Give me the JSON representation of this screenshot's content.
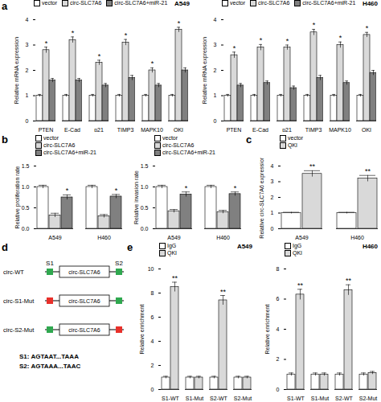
{
  "chart_data": [
    {
      "type": "bar",
      "panel": "a",
      "title": "A549",
      "y_label": "Relative mRNA expression",
      "categories": [
        "PTEN",
        "E-Cad",
        "p21",
        "TIMP3",
        "MAPK10",
        "QKI"
      ],
      "series": [
        {
          "name": "vector",
          "color": "#ffffff",
          "values": [
            1,
            1,
            1,
            1,
            1,
            1
          ],
          "errors": [
            0.05,
            0.05,
            0.05,
            0.05,
            0.05,
            0.05
          ]
        },
        {
          "name": "circ-SLC7A6",
          "color": "#d9d9d9",
          "values": [
            2.8,
            3.2,
            2.3,
            3.1,
            2.0,
            3.6
          ],
          "errors": [
            0.12,
            0.12,
            0.1,
            0.12,
            0.1,
            0.1
          ]
        },
        {
          "name": "circ-SLC7A6+miR-21",
          "color": "#808080",
          "values": [
            1.6,
            1.6,
            1.4,
            1.7,
            1.4,
            2.0
          ],
          "errors": [
            0.08,
            0.08,
            0.08,
            0.1,
            0.08,
            0.1
          ]
        }
      ],
      "ylim": [
        0,
        4
      ],
      "yticks": [
        0,
        1,
        2,
        3,
        4
      ],
      "legend": "top-left",
      "annotations": [
        {
          "category": "PTEN",
          "series": "circ-SLC7A6",
          "text": "*"
        },
        {
          "category": "E-Cad",
          "series": "circ-SLC7A6",
          "text": "*"
        },
        {
          "category": "p21",
          "series": "circ-SLC7A6",
          "text": "*"
        },
        {
          "category": "TIMP3",
          "series": "circ-SLC7A6",
          "text": "*"
        },
        {
          "category": "MAPK10",
          "series": "circ-SLC7A6",
          "text": "*"
        },
        {
          "category": "QKI",
          "series": "circ-SLC7A6",
          "text": "*"
        }
      ]
    },
    {
      "type": "bar",
      "title": "H460",
      "y_label": "Relative mRNA expression",
      "categories": [
        "PTEN",
        "E-Cad",
        "p21",
        "TIMP3",
        "MAPK10",
        "QKI"
      ],
      "series": [
        {
          "name": "vector",
          "color": "#ffffff",
          "values": [
            1,
            1,
            1,
            1,
            1,
            1
          ],
          "errors": [
            0.05,
            0.05,
            0.05,
            0.05,
            0.05,
            0.05
          ]
        },
        {
          "name": "circ-SLC7A6",
          "color": "#d9d9d9",
          "values": [
            2.6,
            2.9,
            2.9,
            3.5,
            3.0,
            3.4
          ],
          "errors": [
            0.12,
            0.12,
            0.1,
            0.12,
            0.12,
            0.1
          ]
        },
        {
          "name": "circ-SLC7A6+miR-21",
          "color": "#808080",
          "values": [
            1.4,
            1.5,
            1.3,
            1.7,
            1.5,
            1.9
          ],
          "errors": [
            0.08,
            0.08,
            0.08,
            0.1,
            0.08,
            0.1
          ]
        }
      ],
      "ylim": [
        0,
        4
      ],
      "yticks": [
        0,
        1,
        2,
        3,
        4
      ],
      "legend": "top-left",
      "annotations": [
        {
          "category": "PTEN",
          "series": "circ-SLC7A6",
          "text": "*"
        },
        {
          "category": "E-Cad",
          "series": "circ-SLC7A6",
          "text": "*"
        },
        {
          "category": "p21",
          "series": "circ-SLC7A6",
          "text": "*"
        },
        {
          "category": "TIMP3",
          "series": "circ-SLC7A6",
          "text": "*"
        },
        {
          "category": "MAPK10",
          "series": "circ-SLC7A6",
          "text": "*"
        },
        {
          "category": "QKI",
          "series": "circ-SLC7A6",
          "text": "*"
        }
      ]
    },
    {
      "type": "bar",
      "panel": "b",
      "y_label": "Relative proliferation rate",
      "categories": [
        "A549",
        "H460"
      ],
      "series": [
        {
          "name": "vector",
          "color": "#ffffff",
          "values": [
            1,
            1
          ],
          "errors": [
            0.04,
            0.04
          ]
        },
        {
          "name": "circ-SLC7A6",
          "color": "#d9d9d9",
          "values": [
            0.32,
            0.3
          ],
          "errors": [
            0.05,
            0.04
          ]
        },
        {
          "name": "circ-SLC7A6+miR-21",
          "color": "#808080",
          "values": [
            0.75,
            0.77
          ],
          "errors": [
            0.06,
            0.05
          ]
        }
      ],
      "ylim": [
        0,
        1.5
      ],
      "yticks": [
        {
          "value": 0,
          "label": "0.0"
        },
        {
          "value": 0.5,
          "label": "0.5"
        },
        {
          "value": 1,
          "label": "1.0"
        },
        {
          "value": 1.5,
          "label": "1.5"
        }
      ],
      "legend": "top-left",
      "annotations": [
        {
          "category": "A549",
          "series": "circ-SLC7A6+miR-21",
          "text": "*"
        },
        {
          "category": "H460",
          "series": "circ-SLC7A6+miR-21",
          "text": "*"
        }
      ]
    },
    {
      "type": "bar",
      "y_label": "Relative invasion rate",
      "categories": [
        "A549",
        "H460"
      ],
      "series": [
        {
          "name": "vector",
          "color": "#ffffff",
          "values": [
            1,
            1
          ],
          "errors": [
            0.04,
            0.04
          ]
        },
        {
          "name": "circ-SLC7A6",
          "color": "#d9d9d9",
          "values": [
            0.42,
            0.4
          ],
          "errors": [
            0.04,
            0.04
          ]
        },
        {
          "name": "circ-SLC7A6+miR-21",
          "color": "#808080",
          "values": [
            0.82,
            0.83
          ],
          "errors": [
            0.06,
            0.05
          ]
        }
      ],
      "ylim": [
        0,
        1.5
      ],
      "yticks": [
        {
          "value": 0,
          "label": "0.0"
        },
        {
          "value": 0.5,
          "label": "0.5"
        },
        {
          "value": 1,
          "label": "1.0"
        },
        {
          "value": 1.5,
          "label": "1.5"
        }
      ],
      "legend": "top-left",
      "annotations": [
        {
          "category": "A549",
          "series": "circ-SLC7A6+miR-21",
          "text": "*"
        },
        {
          "category": "H460",
          "series": "circ-SLC7A6+miR-21",
          "text": "*"
        }
      ]
    },
    {
      "type": "bar",
      "panel": "c",
      "y_label": "Relative circ-SLC7A6 expression",
      "categories": [
        "A549",
        "H460"
      ],
      "series": [
        {
          "name": "vector",
          "color": "#ffffff",
          "values": [
            1,
            1
          ],
          "errors": [
            0.05,
            0.05
          ]
        },
        {
          "name": "QKI",
          "color": "#d9d9d9",
          "values": [
            3.5,
            3.2
          ],
          "errors": [
            0.2,
            0.2
          ]
        }
      ],
      "ylim": [
        0,
        4
      ],
      "yticks": [
        0,
        1,
        2,
        3,
        4
      ],
      "legend": "top-left",
      "annotations": [
        {
          "category": "A549",
          "series": "QKI",
          "text": "**"
        },
        {
          "category": "H460",
          "series": "QKI",
          "text": "**"
        }
      ]
    },
    {
      "type": "bar",
      "panel": "e",
      "title": "A549",
      "y_label": "Relative enrichment",
      "categories": [
        "S1-WT",
        "S1-Mut",
        "S2-WT",
        "S2-Mut"
      ],
      "series": [
        {
          "name": "IgG",
          "color": "#ffffff",
          "values": [
            1,
            1,
            1,
            1
          ],
          "errors": [
            0.1,
            0.1,
            0.1,
            0.1
          ]
        },
        {
          "name": "QKI",
          "color": "#d9d9d9",
          "values": [
            8.5,
            1.0,
            7.4,
            1.0
          ],
          "errors": [
            0.4,
            0.1,
            0.4,
            0.1
          ]
        }
      ],
      "ylim": [
        0,
        10
      ],
      "yticks": [
        0,
        2,
        4,
        6,
        8,
        10
      ],
      "legend": "top-left",
      "annotations": [
        {
          "category": "S1-WT",
          "series": "QKI",
          "text": "**"
        },
        {
          "category": "S2-WT",
          "series": "QKI",
          "text": "**"
        }
      ]
    },
    {
      "type": "bar",
      "title": "H460",
      "y_label": "Relative enrichment",
      "categories": [
        "S1-WT",
        "S1-Mut",
        "S2-WT",
        "S2-Mut"
      ],
      "series": [
        {
          "name": "IgG",
          "color": "#ffffff",
          "values": [
            1,
            1,
            1,
            1
          ],
          "errors": [
            0.1,
            0.1,
            0.1,
            0.1
          ]
        },
        {
          "name": "QKI",
          "color": "#d9d9d9",
          "values": [
            6.3,
            1.0,
            6.6,
            1.1
          ],
          "errors": [
            0.35,
            0.1,
            0.35,
            0.1
          ]
        }
      ],
      "ylim": [
        0,
        8
      ],
      "yticks": [
        0,
        2,
        4,
        6,
        8
      ],
      "legend": "top-left",
      "annotations": [
        {
          "category": "S1-WT",
          "series": "QKI",
          "text": "**"
        },
        {
          "category": "S2-WT",
          "series": "QKI",
          "text": "**"
        }
      ]
    }
  ],
  "diagram": {
    "panel": "d",
    "sites": [
      "S1",
      "S2"
    ],
    "constructs": [
      {
        "label": "circ-WT",
        "box": "circ-SLC7A6",
        "mutated": []
      },
      {
        "label": "circ-S1-Mut",
        "box": "circ-SLC7A6",
        "mutated": [
          "S1"
        ]
      },
      {
        "label": "circ-S2-Mut",
        "box": "circ-SLC7A6",
        "mutated": [
          "S2"
        ]
      }
    ],
    "sequences": [
      "S1: AGTAAT...TAAA",
      "S2: AGTAAA...TAAC"
    ]
  }
}
